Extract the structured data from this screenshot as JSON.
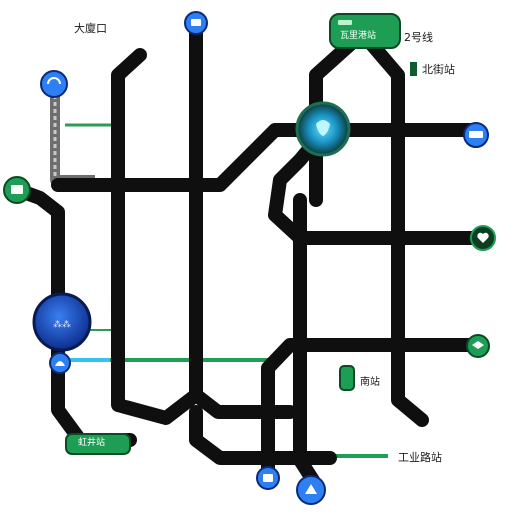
{
  "colors": {
    "background": "#ffffff",
    "route": "#0f0f0f",
    "accent_blue": "#2e7ff2",
    "accent_green": "#1e9e55",
    "accent_cyan": "#33c7f0",
    "text": "#1a1a1a"
  },
  "labels": {
    "top_left": "大廈口",
    "top_right": "2号线",
    "right_upper": "北街站",
    "bottom_right": "工业路站",
    "center_small": "南站"
  },
  "pills": {
    "top_center": "瓦里港站",
    "bottom_left": "虹井站"
  },
  "icons": [
    "bus-icon",
    "train-icon",
    "leaf-icon",
    "heart-icon",
    "boat-icon"
  ]
}
